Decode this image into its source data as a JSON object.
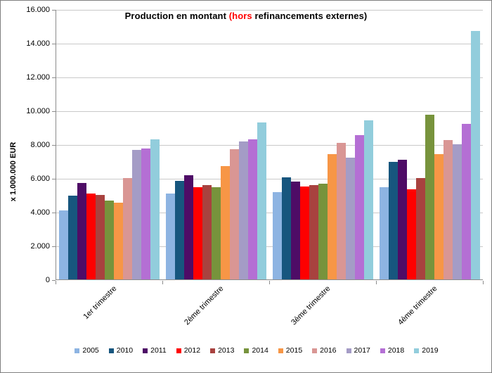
{
  "window": {
    "background": "#ffffff",
    "border_color": "#7f7f7f"
  },
  "title": {
    "full_text": "Production en montant (hors refinancements externes)",
    "parts": [
      {
        "text": "Production en montant ",
        "color": "#000000"
      },
      {
        "text": "(hors",
        "color": "#ff0000"
      },
      {
        "text": " refinancements externes)",
        "color": "#000000"
      }
    ]
  },
  "y_axis": {
    "title": "x 1.000.000  EUR",
    "tick_labels": [
      "16.000",
      "14.000",
      "12.000",
      "10.000",
      "8.000",
      "6.000",
      "4.000",
      "2.000",
      "0"
    ],
    "max": 16000,
    "step": 2000,
    "grid_color": "#c9c9c9",
    "axis_color": "#8c8c8c"
  },
  "chart_data": {
    "type": "bar",
    "title": "Production en montant (hors refinancements externes)",
    "xlabel": "",
    "ylabel": "x 1.000.000 EUR",
    "ylim": [
      0,
      16000
    ],
    "grid": true,
    "legend_position": "bottom",
    "categories": [
      "1er trimestre",
      "2ème trimestre",
      "3ème trimestre",
      "4ème trimestre"
    ],
    "series": [
      {
        "name": "2005",
        "color": "#8db4e2",
        "values": [
          4080,
          5100,
          5150,
          5450
        ]
      },
      {
        "name": "2010",
        "color": "#17567e",
        "values": [
          4950,
          5850,
          6050,
          6950
        ]
      },
      {
        "name": "2011",
        "color": "#4e0c66",
        "values": [
          5700,
          6150,
          5800,
          7100
        ]
      },
      {
        "name": "2012",
        "color": "#fe0000",
        "values": [
          5100,
          5450,
          5500,
          5350
        ]
      },
      {
        "name": "2013",
        "color": "#a8423f",
        "values": [
          5000,
          5600,
          5600,
          6000
        ]
      },
      {
        "name": "2014",
        "color": "#77933c",
        "values": [
          4650,
          5450,
          5650,
          9750
        ]
      },
      {
        "name": "2015",
        "color": "#f79646",
        "values": [
          4550,
          6700,
          7400,
          7400
        ]
      },
      {
        "name": "2016",
        "color": "#d99694",
        "values": [
          6000,
          7700,
          8100,
          8250
        ]
      },
      {
        "name": "2017",
        "color": "#a49cc6",
        "values": [
          7650,
          8150,
          7200,
          8000
        ]
      },
      {
        "name": "2018",
        "color": "#b46fd4",
        "values": [
          7750,
          8300,
          8550,
          9200
        ]
      },
      {
        "name": "2019",
        "color": "#92cddc",
        "values": [
          8300,
          9300,
          9400,
          14700
        ]
      }
    ]
  },
  "legend": {
    "items": [
      "2005",
      "2010",
      "2011",
      "2012",
      "2013",
      "2014",
      "2015",
      "2016",
      "2017",
      "2018",
      "2019"
    ]
  }
}
